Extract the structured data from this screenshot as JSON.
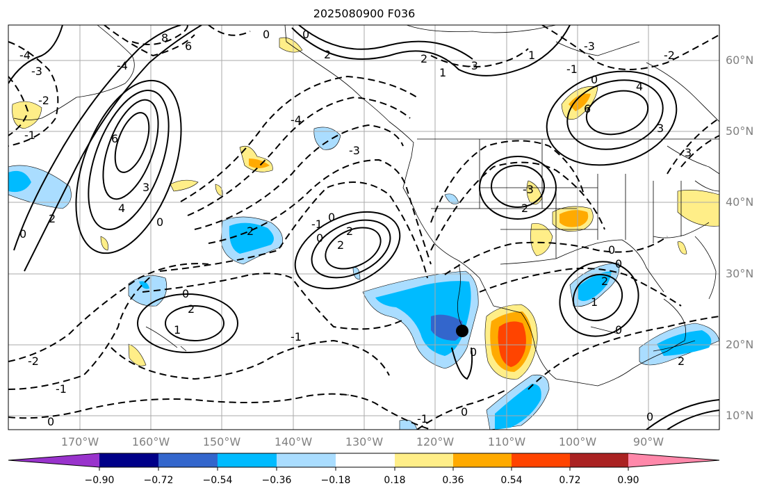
{
  "title": "2025080900 F036",
  "lat_labels": [
    "60°N",
    "50°N",
    "40°N",
    "30°N",
    "20°N",
    "10°N"
  ],
  "lon_labels": [
    "170°W",
    "160°W",
    "150°W",
    "140°W",
    "130°W",
    "120°W",
    "110°W",
    "100°W",
    "90°W"
  ],
  "colorbar": {
    "ticks": [
      "−0.90",
      "−0.72",
      "−0.54",
      "−0.36",
      "−0.18",
      "0.18",
      "0.36",
      "0.54",
      "0.72",
      "0.90"
    ],
    "colors": [
      "#9933cc",
      "#000088",
      "#3366cc",
      "#00bbff",
      "#aaddff",
      "#ffffff",
      "#ffee88",
      "#ffaa00",
      "#ff4400",
      "#aa2222",
      "#ff88aa"
    ]
  },
  "contour_labels": [
    "0",
    "1",
    "2",
    "3",
    "4",
    "6",
    "8",
    "-1",
    "-2",
    "-3",
    "-4"
  ],
  "marker": "storm-center"
}
